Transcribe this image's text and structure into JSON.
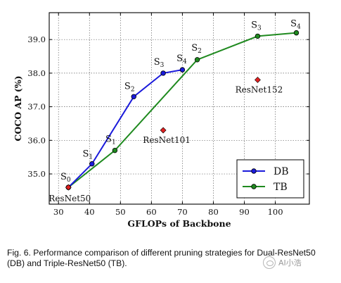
{
  "chart_data": {
    "type": "line",
    "xlabel": "GFLOPs of Backbone",
    "ylabel": "COCO AP (%)",
    "xlim": [
      27,
      111
    ],
    "ylim": [
      34.1,
      39.8
    ],
    "xticks": [
      30,
      40,
      50,
      60,
      70,
      80,
      90,
      100
    ],
    "yticks": [
      35.0,
      36.0,
      37.0,
      38.0,
      39.0
    ],
    "ytick_labels": [
      "35.0",
      "36.0",
      "37.0",
      "38.0",
      "39.0"
    ],
    "grid": true,
    "legend_position": "lower-right",
    "series": [
      {
        "name": "DB",
        "color": "#1a1adb",
        "points": [
          {
            "x": 33.2,
            "y": 34.6,
            "label": "S0"
          },
          {
            "x": 40.8,
            "y": 35.3,
            "label": "S1"
          },
          {
            "x": 54.3,
            "y": 37.3,
            "label": "S2"
          },
          {
            "x": 63.8,
            "y": 38.0,
            "label": "S3"
          },
          {
            "x": 70.0,
            "y": 38.1,
            "label": "S4"
          }
        ]
      },
      {
        "name": "TB",
        "color": "#1f8a1f",
        "points": [
          {
            "x": 33.2,
            "y": 34.6,
            "label": ""
          },
          {
            "x": 48.2,
            "y": 35.7,
            "label": "S1"
          },
          {
            "x": 74.8,
            "y": 38.4,
            "label": "S2"
          },
          {
            "x": 94.3,
            "y": 39.1,
            "label": "S3"
          },
          {
            "x": 106.8,
            "y": 39.2,
            "label": "S4"
          }
        ]
      }
    ],
    "references": [
      {
        "name": "ResNet50",
        "x": 33.2,
        "y": 34.6,
        "color": "#e02020"
      },
      {
        "name": "ResNet101",
        "x": 63.8,
        "y": 36.3,
        "color": "#e02020"
      },
      {
        "name": "ResNet152",
        "x": 94.3,
        "y": 37.8,
        "color": "#e02020"
      }
    ]
  },
  "caption": "Fig. 6.  Performance comparison of different pruning strategies for Dual-ResNet50 (DB) and Triple-ResNet50 (TB).",
  "watermark": {
    "text": "AI小浩",
    "icon": "wechat-icon"
  }
}
